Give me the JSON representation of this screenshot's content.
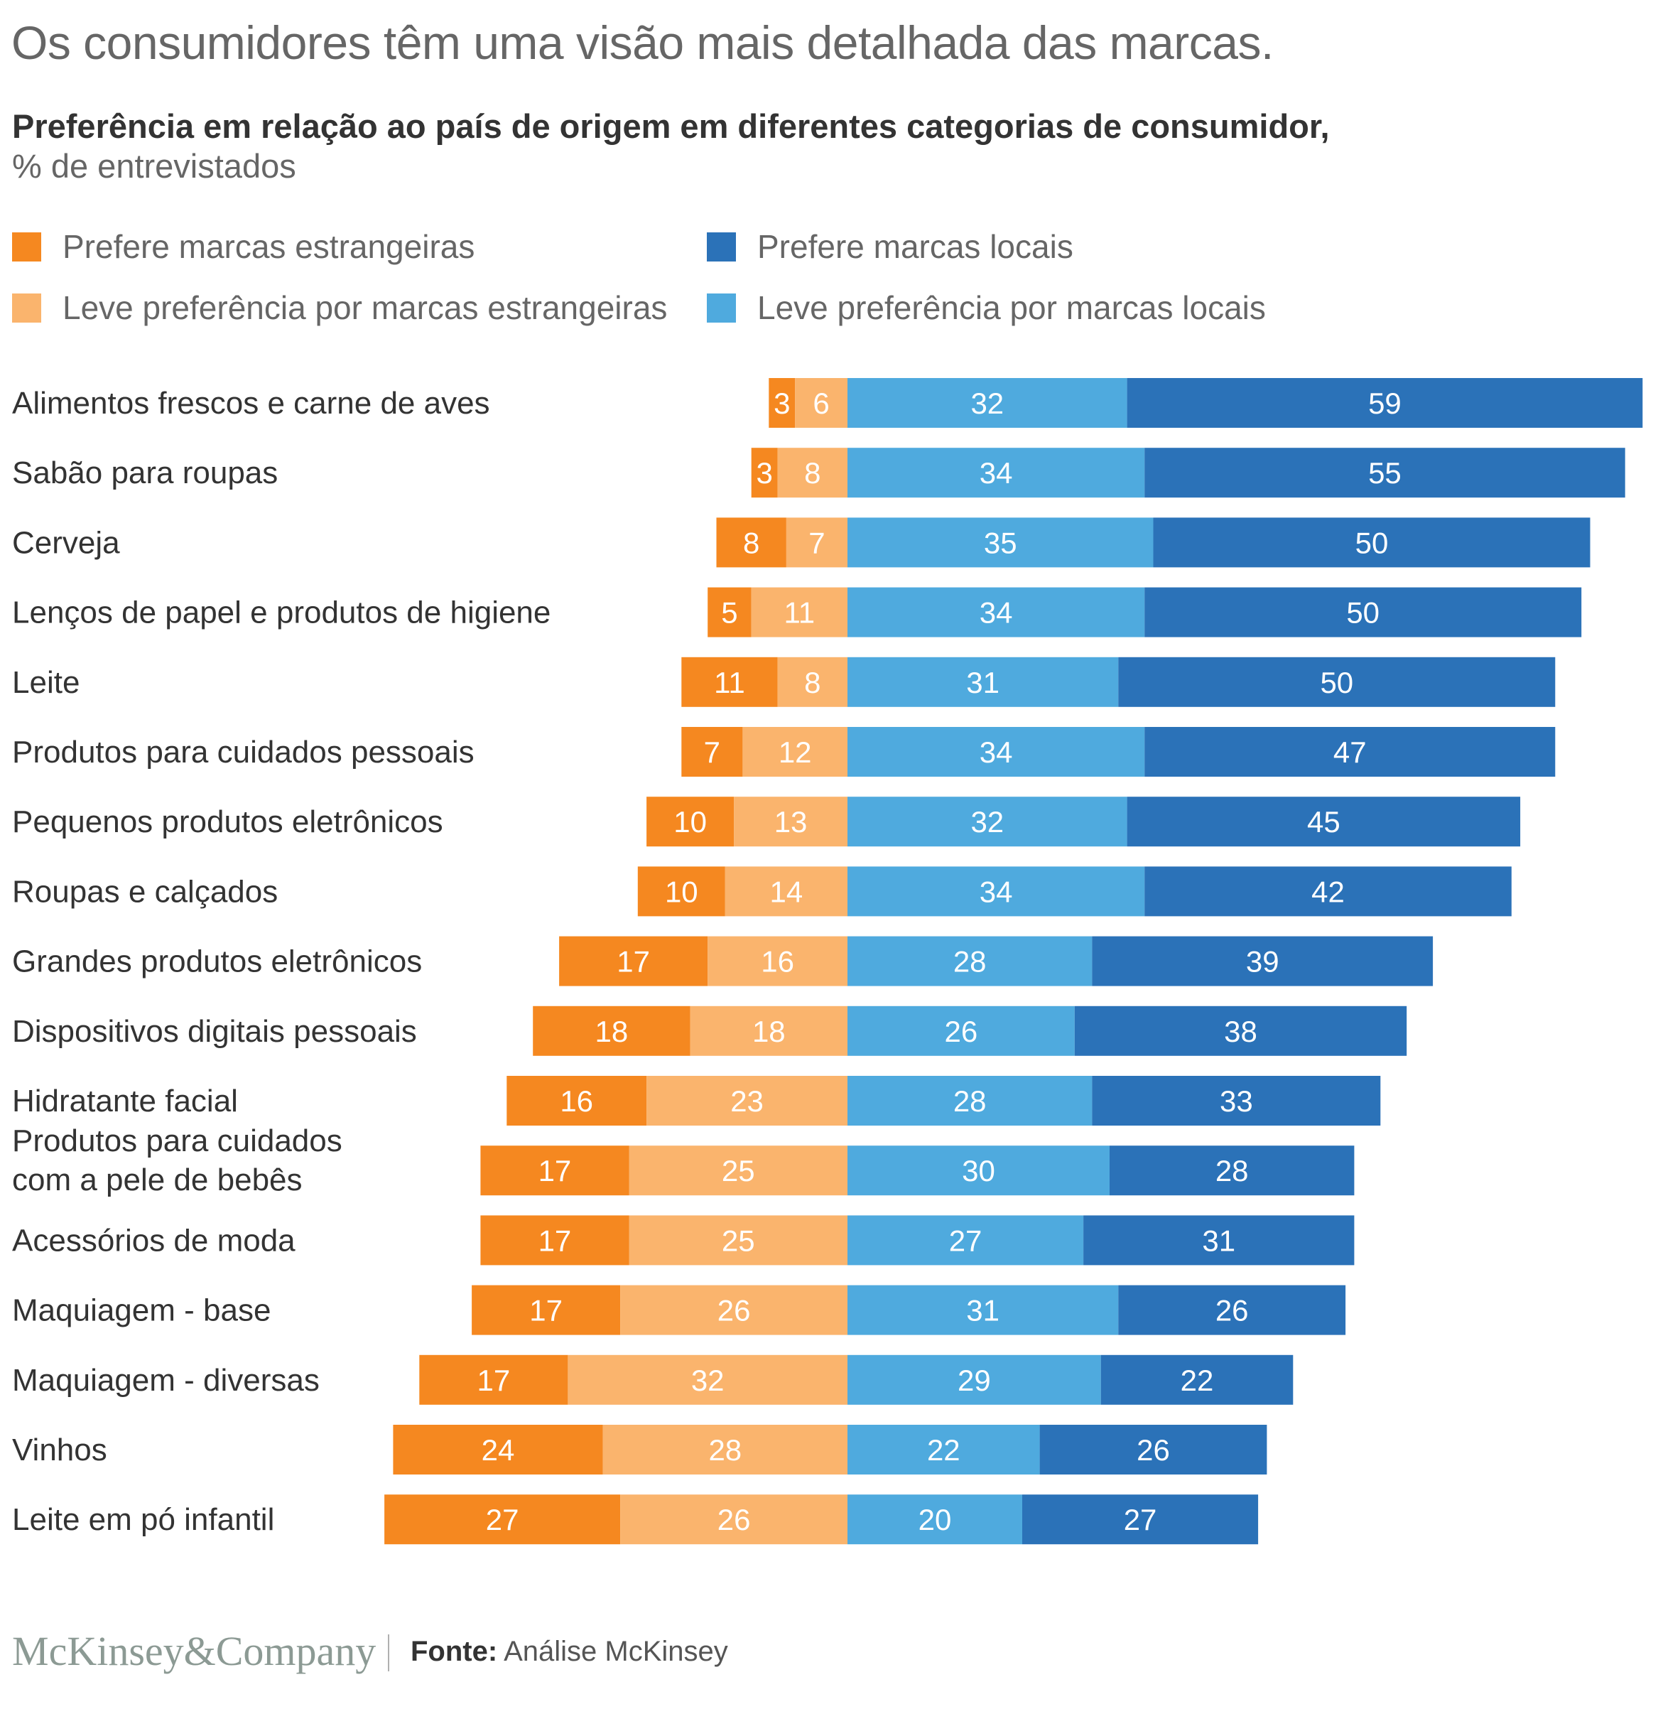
{
  "title": "Os consumidores têm uma visão mais detalhada das marcas.",
  "subtitle": "Preferência em relação ao país de origem em diferentes categorias de consumidor,",
  "unit": "% de entrevistados",
  "colors": {
    "strong_foreign": "#f58820",
    "slight_foreign": "#fab46d",
    "slight_local": "#4faade",
    "strong_local": "#2b72b8"
  },
  "legend": [
    {
      "key": "strong_foreign",
      "label": "Prefere marcas estrangeiras"
    },
    {
      "key": "strong_local",
      "label": "Prefere marcas locais"
    },
    {
      "key": "slight_foreign",
      "label": "Leve preferência por marcas estrangeiras"
    },
    {
      "key": "slight_local",
      "label": "Leve preferência por marcas locais"
    }
  ],
  "footer": {
    "logo": "McKinsey&Company",
    "source_label": "Fonte:",
    "source_text": "Análise McKinsey"
  },
  "chart_data": {
    "type": "bar",
    "orientation": "horizontal",
    "stacked": "diverging",
    "title": "Os consumidores têm uma visão mais detalhada das marcas.",
    "subtitle": "Preferência em relação ao país de origem em diferentes categorias de consumidor, % de entrevistados",
    "xlabel": "",
    "ylabel": "",
    "grid": false,
    "legend_position": "top-left",
    "categories": [
      [
        "Alimentos frescos e carne de aves"
      ],
      [
        "Sabão para roupas"
      ],
      [
        "Cerveja"
      ],
      [
        "Lenços de papel e produtos de higiene"
      ],
      [
        "Leite"
      ],
      [
        "Produtos para cuidados pessoais"
      ],
      [
        "Pequenos produtos eletrônicos"
      ],
      [
        "Roupas e calçados"
      ],
      [
        "Grandes produtos eletrônicos"
      ],
      [
        "Dispositivos digitais pessoais"
      ],
      [
        "Hidratante facial"
      ],
      [
        "Produtos para cuidados",
        "com a pele de bebês"
      ],
      [
        "Acessórios de moda"
      ],
      [
        "Maquiagem - base"
      ],
      [
        "Maquiagem - diversas"
      ],
      [
        "Vinhos"
      ],
      [
        "Leite em pó infantil"
      ]
    ],
    "series": [
      {
        "key": "strong_foreign",
        "name": "Prefere marcas estrangeiras",
        "side": "left",
        "values": [
          3,
          3,
          8,
          5,
          11,
          7,
          10,
          10,
          17,
          18,
          16,
          17,
          17,
          17,
          17,
          24,
          27
        ]
      },
      {
        "key": "slight_foreign",
        "name": "Leve preferência por marcas estrangeiras",
        "side": "left",
        "values": [
          6,
          8,
          7,
          11,
          8,
          12,
          13,
          14,
          16,
          18,
          23,
          25,
          25,
          26,
          32,
          28,
          26
        ]
      },
      {
        "key": "slight_local",
        "name": "Leve preferência por marcas locais",
        "side": "right",
        "values": [
          32,
          34,
          35,
          34,
          31,
          34,
          32,
          34,
          28,
          26,
          28,
          30,
          27,
          31,
          29,
          22,
          20
        ]
      },
      {
        "key": "strong_local",
        "name": "Prefere marcas locais",
        "side": "right",
        "values": [
          59,
          55,
          50,
          50,
          50,
          47,
          45,
          42,
          39,
          38,
          33,
          28,
          31,
          26,
          22,
          26,
          27
        ]
      }
    ]
  }
}
